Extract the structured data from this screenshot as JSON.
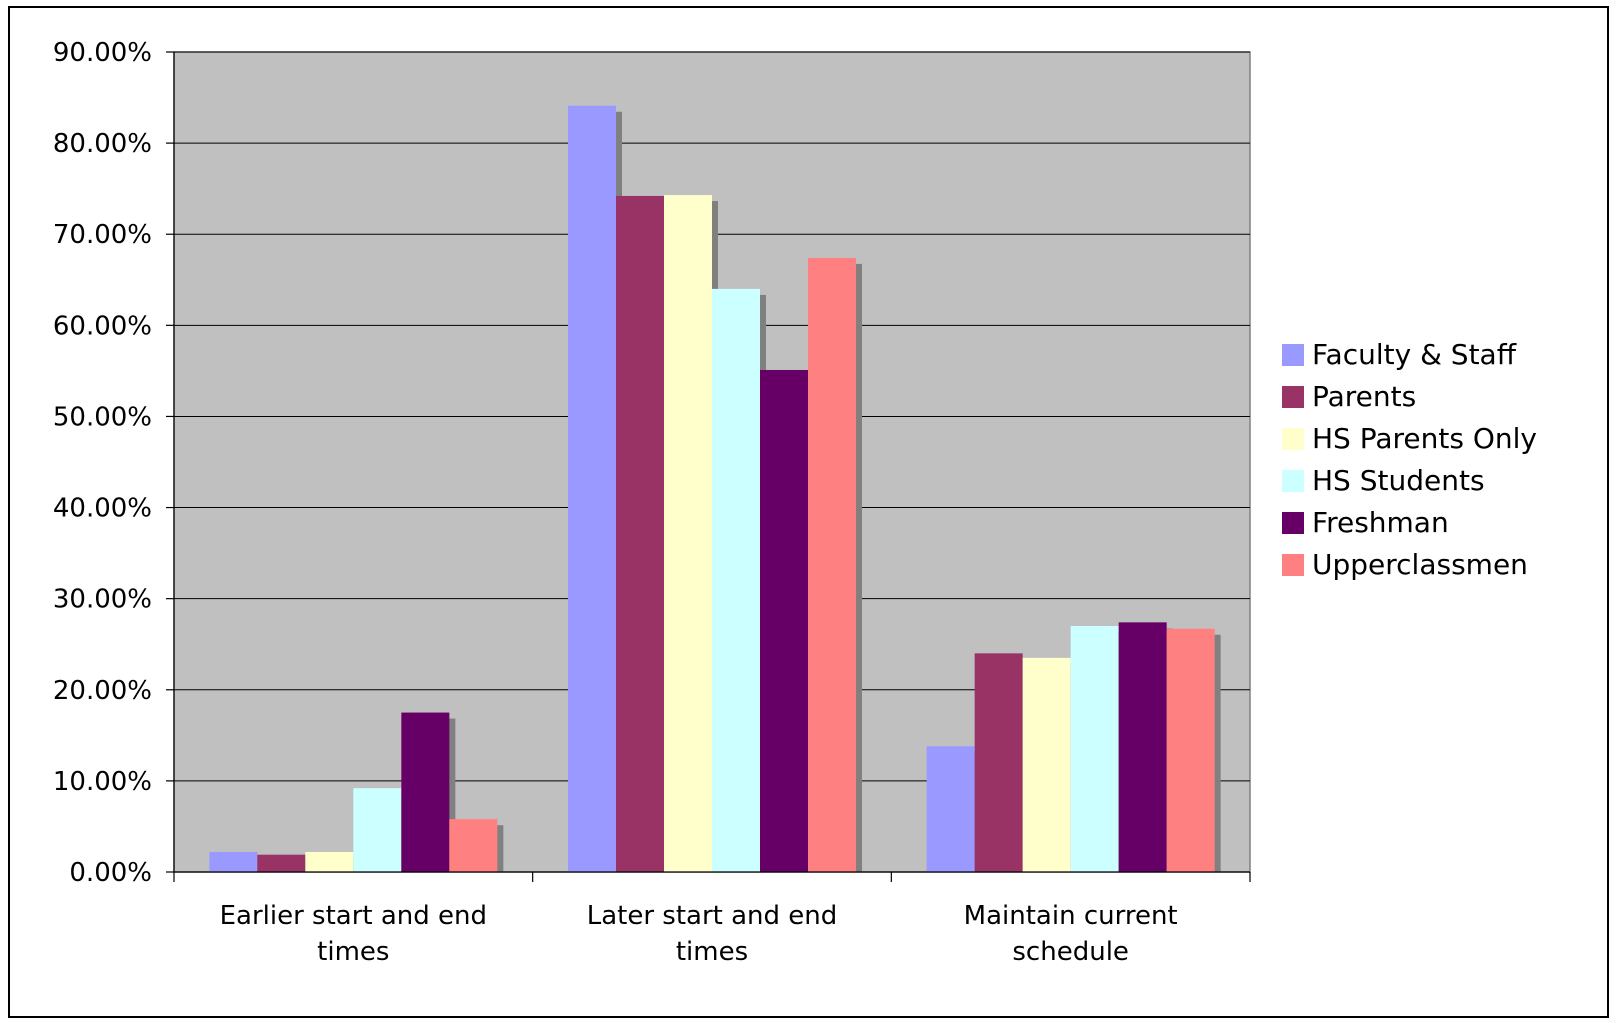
{
  "chart_data": {
    "type": "bar",
    "title": "",
    "xlabel": "",
    "ylabel": "",
    "categories": [
      [
        "Earlier start and end",
        "times"
      ],
      [
        "Later start and end",
        "times"
      ],
      [
        "Maintain current",
        "schedule"
      ]
    ],
    "series": [
      {
        "name": "Faculty & Staff",
        "color": "#9999FF",
        "values": [
          2.2,
          84.1,
          13.8
        ]
      },
      {
        "name": "Parents",
        "color": "#993366",
        "values": [
          1.9,
          74.2,
          24.0
        ]
      },
      {
        "name": "HS Parents Only",
        "color": "#FFFFCC",
        "values": [
          2.2,
          74.3,
          23.5
        ]
      },
      {
        "name": "HS Students",
        "color": "#CCFFFF",
        "values": [
          9.2,
          64.0,
          27.0
        ]
      },
      {
        "name": "Freshman",
        "color": "#660066",
        "values": [
          17.5,
          55.1,
          27.4
        ]
      },
      {
        "name": "Upperclassmen",
        "color": "#FF8080",
        "values": [
          5.8,
          67.4,
          26.7
        ]
      }
    ],
    "y_ticks": [
      "0.00%",
      "10.00%",
      "20.00%",
      "30.00%",
      "40.00%",
      "50.00%",
      "60.00%",
      "70.00%",
      "80.00%",
      "90.00%"
    ],
    "ylim": [
      0,
      90
    ],
    "y_unit": "%",
    "grid": true,
    "plot_background": "#C0C0C0",
    "legend_position": "right"
  }
}
